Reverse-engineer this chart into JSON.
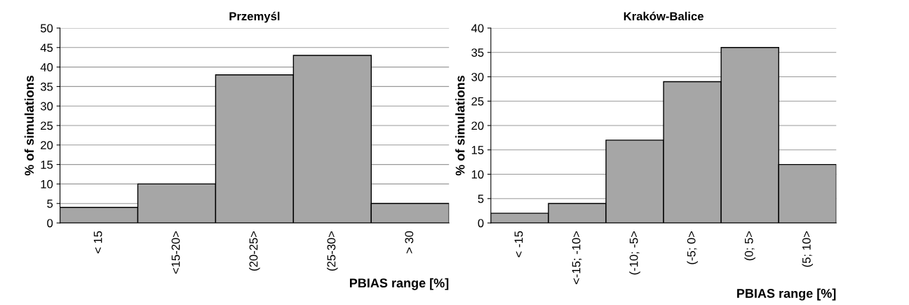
{
  "chart_data": [
    {
      "type": "bar",
      "title": "Przemyśl",
      "xlabel": "PBIAS range [%]",
      "ylabel": "% of simulations",
      "categories": [
        "< 15",
        "<15-20>",
        "(20-25>",
        "(25-30>",
        "> 30"
      ],
      "values": [
        4,
        10,
        38,
        43,
        5
      ],
      "color": "#a6a6a6",
      "ylim": [
        0,
        50
      ],
      "yticks": [
        0,
        5,
        10,
        15,
        20,
        25,
        30,
        35,
        40,
        45,
        50
      ],
      "grid": "y",
      "legend": false
    },
    {
      "type": "bar",
      "title": "Kraków-Balice",
      "xlabel": "PBIAS range [%]",
      "ylabel": "% of simulations",
      "categories": [
        "< -15",
        "<-15; -10>",
        "(-10; -5>",
        "(-5; 0>",
        "(0; 5>",
        "(5; 10>"
      ],
      "values": [
        2,
        4,
        17,
        29,
        36,
        12
      ],
      "color": "#a6a6a6",
      "ylim": [
        0,
        40
      ],
      "yticks": [
        0,
        5,
        10,
        15,
        20,
        25,
        30,
        35,
        40
      ],
      "grid": "y",
      "legend": false
    }
  ]
}
